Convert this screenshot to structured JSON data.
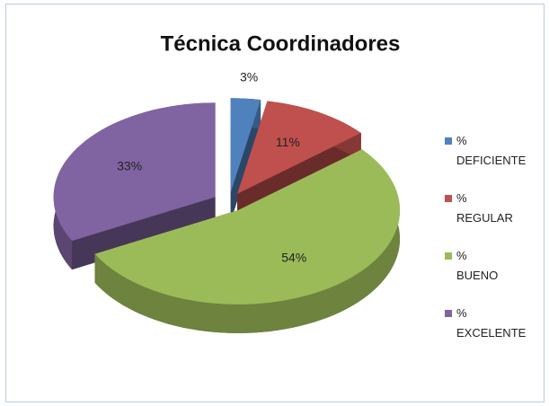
{
  "chart_data": {
    "type": "pie",
    "title": "Técnica Coordinadores",
    "categories": [
      "% DEFICIENTE",
      "% REGULAR",
      "% BUENO",
      "% EXCELENTE"
    ],
    "values": [
      3,
      11,
      54,
      33
    ],
    "value_labels": [
      "3%",
      "11%",
      "54%",
      "33%"
    ],
    "colors": [
      "#4f81bd",
      "#c0504d",
      "#9bbb59",
      "#8064a2"
    ],
    "legend": "right"
  }
}
